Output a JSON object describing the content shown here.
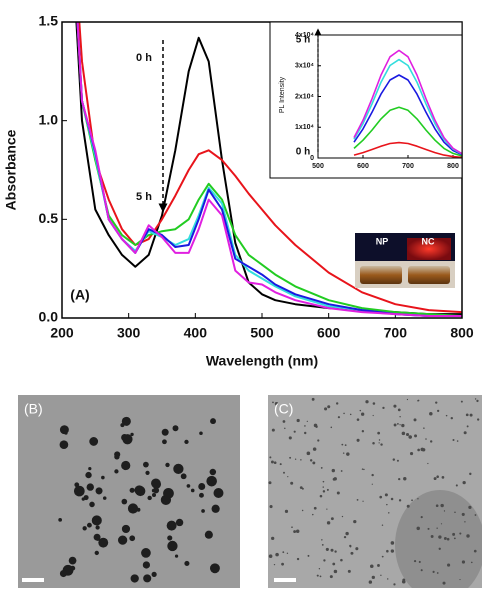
{
  "chart_data": [
    {
      "type": "line",
      "xlabel": "Wavelength (nm)",
      "ylabel": "Absorbance",
      "annotations": [
        "0 h",
        "5 h",
        "(A)"
      ],
      "x": [
        220,
        230,
        250,
        270,
        290,
        310,
        330,
        350,
        370,
        390,
        405,
        420,
        440,
        460,
        480,
        500,
        520,
        550,
        600,
        650,
        700,
        750,
        800
      ],
      "xlim": [
        200,
        800
      ],
      "xticks": [
        200,
        300,
        400,
        500,
        600,
        700,
        800
      ],
      "ylim": [
        0,
        1.5
      ],
      "yticks": [
        {
          "value": 0,
          "label": "0.0"
        },
        0.5,
        {
          "value": 1,
          "label": "1.0"
        },
        1.5
      ],
      "series": [
        {
          "color": "#000000",
          "values": [
            1.6,
            1.0,
            0.55,
            0.42,
            0.32,
            0.26,
            0.32,
            0.52,
            0.85,
            1.25,
            1.42,
            1.3,
            0.8,
            0.38,
            0.18,
            0.12,
            0.09,
            0.07,
            0.05,
            0.04,
            0.03,
            0.02,
            0.02
          ]
        },
        {
          "color": "#e8141b",
          "values": [
            1.8,
            1.3,
            0.8,
            0.6,
            0.45,
            0.37,
            0.4,
            0.5,
            0.62,
            0.75,
            0.83,
            0.85,
            0.8,
            0.72,
            0.63,
            0.55,
            0.47,
            0.37,
            0.23,
            0.13,
            0.07,
            0.04,
            0.03
          ]
        },
        {
          "color": "#22cc22",
          "values": [
            1.7,
            1.1,
            0.8,
            0.52,
            0.42,
            0.37,
            0.42,
            0.44,
            0.45,
            0.5,
            0.6,
            0.68,
            0.6,
            0.42,
            0.32,
            0.27,
            0.22,
            0.16,
            0.09,
            0.05,
            0.03,
            0.02,
            0.01
          ]
        },
        {
          "color": "#33dddd",
          "values": [
            1.7,
            1.1,
            0.82,
            0.5,
            0.4,
            0.34,
            0.44,
            0.41,
            0.37,
            0.4,
            0.52,
            0.66,
            0.58,
            0.32,
            0.24,
            0.2,
            0.16,
            0.11,
            0.06,
            0.04,
            0.02,
            0.01,
            0.01
          ]
        },
        {
          "color": "#1a1ae0",
          "values": [
            1.7,
            1.1,
            0.84,
            0.5,
            0.4,
            0.33,
            0.45,
            0.42,
            0.36,
            0.37,
            0.5,
            0.65,
            0.55,
            0.3,
            0.26,
            0.22,
            0.17,
            0.12,
            0.07,
            0.04,
            0.02,
            0.01,
            0.01
          ]
        },
        {
          "color": "#e020e0",
          "values": [
            1.7,
            1.1,
            0.85,
            0.5,
            0.4,
            0.33,
            0.47,
            0.41,
            0.33,
            0.33,
            0.45,
            0.6,
            0.52,
            0.24,
            0.18,
            0.17,
            0.13,
            0.09,
            0.05,
            0.03,
            0.02,
            0.01,
            0.01
          ]
        }
      ]
    },
    {
      "type": "line",
      "ylabel": "PL Intensity",
      "annotations": [
        "5 h",
        "0 h"
      ],
      "x": [
        580,
        600,
        620,
        640,
        660,
        680,
        700,
        720,
        740,
        760,
        780,
        800,
        820
      ],
      "xlim": [
        500,
        820
      ],
      "xticks": [
        500,
        600,
        700,
        800
      ],
      "ylim": [
        0,
        40000
      ],
      "yticks": [
        0,
        {
          "value": 10000,
          "label": "1x10⁴"
        },
        {
          "value": 20000,
          "label": "2x10⁴"
        },
        {
          "value": 30000,
          "label": "3x10⁴"
        },
        {
          "value": 40000,
          "label": "4x10⁴"
        }
      ],
      "series": [
        {
          "color": "#e8141b",
          "values": [
            950,
            1750,
            2750,
            3850,
            4700,
            5000,
            4700,
            3850,
            2750,
            1750,
            950,
            450,
            200
          ]
        },
        {
          "color": "#22cc22",
          "values": [
            3135,
            5775,
            9075,
            12705,
            15510,
            16500,
            15510,
            12705,
            9075,
            5775,
            3135,
            1485,
            660
          ]
        },
        {
          "color": "#1a1ae0",
          "values": [
            5130,
            9450,
            14850,
            20790,
            25380,
            27000,
            25380,
            20790,
            14850,
            9450,
            5130,
            2430,
            1080
          ]
        },
        {
          "color": "#33dddd",
          "values": [
            6080,
            11200,
            17600,
            24640,
            30080,
            32000,
            30080,
            24640,
            17600,
            11200,
            6080,
            2880,
            1280
          ]
        },
        {
          "color": "#e020e0",
          "values": [
            6650,
            12250,
            19250,
            26950,
            32900,
            35000,
            32900,
            26950,
            19250,
            12250,
            6650,
            3150,
            1400
          ]
        }
      ]
    }
  ],
  "photo_labels": [
    "NP",
    "NC"
  ],
  "panels": [
    "(B)",
    "(C)"
  ]
}
